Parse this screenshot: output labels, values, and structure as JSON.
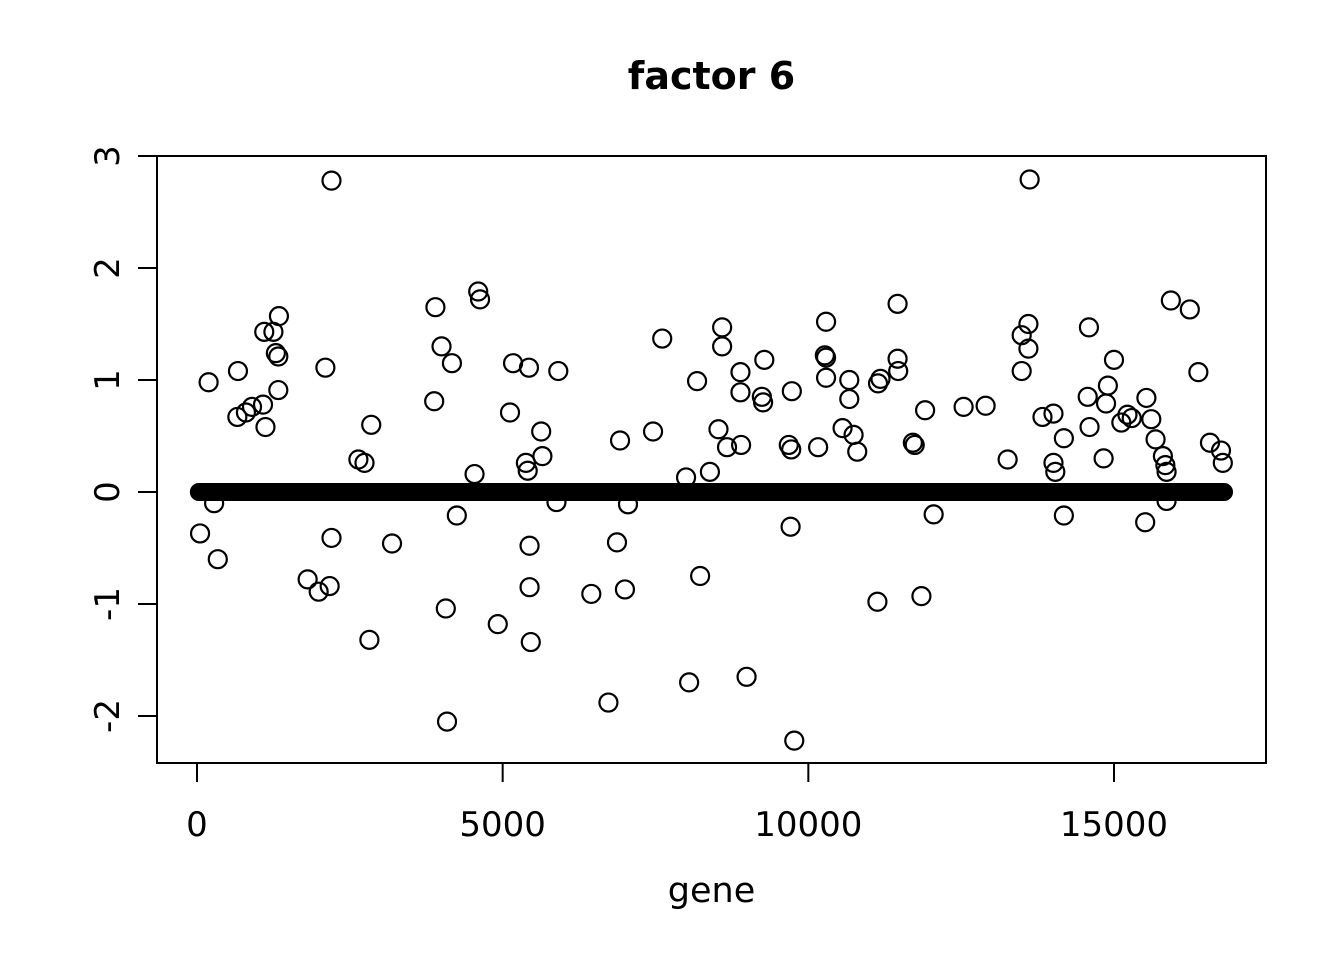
{
  "figure": {
    "background": "#ffffff",
    "foreground": "#000000"
  },
  "chart_data": {
    "type": "scatter",
    "title": "factor 6",
    "xlabel": "gene",
    "ylabel": "",
    "x_ticks": [
      0,
      5000,
      10000,
      15000
    ],
    "y_ticks": [
      3,
      2,
      1,
      0,
      -1,
      -2
    ],
    "xlim": [
      -650,
      17490
    ],
    "ylim": [
      -2.42,
      3.0
    ],
    "grid": false,
    "legend": "none",
    "marker": "open-circle",
    "marker_color": "#000000",
    "zero_band": {
      "value": 0,
      "gene_start": 30,
      "gene_end": 16800,
      "note": "dense band of heavily overplotted points with loading ~0 spanning nearly all genes"
    },
    "points": [
      [
        190,
        0.98
      ],
      [
        50,
        -0.37
      ],
      [
        280,
        -0.1
      ],
      [
        340,
        -0.6
      ],
      [
        660,
        0.67
      ],
      [
        670,
        1.08
      ],
      [
        800,
        0.71
      ],
      [
        900,
        0.76
      ],
      [
        1080,
        0.78
      ],
      [
        1120,
        0.58
      ],
      [
        1100,
        1.43
      ],
      [
        1250,
        1.43
      ],
      [
        1290,
        1.24
      ],
      [
        1330,
        1.21
      ],
      [
        1340,
        1.57
      ],
      [
        1330,
        0.91
      ],
      [
        2100,
        1.11
      ],
      [
        2200,
        2.78
      ],
      [
        1810,
        -0.78
      ],
      [
        1990,
        -0.89
      ],
      [
        2170,
        -0.84
      ],
      [
        2200,
        -0.41
      ],
      [
        2640,
        0.29
      ],
      [
        2740,
        0.26
      ],
      [
        2850,
        0.6
      ],
      [
        2820,
        -1.32
      ],
      [
        3190,
        -0.46
      ],
      [
        3880,
        0.81
      ],
      [
        3900,
        1.65
      ],
      [
        4000,
        1.3
      ],
      [
        4170,
        1.15
      ],
      [
        4070,
        -1.04
      ],
      [
        4090,
        -2.05
      ],
      [
        4250,
        -0.21
      ],
      [
        4540,
        0.16
      ],
      [
        4600,
        1.79
      ],
      [
        4630,
        1.72
      ],
      [
        4920,
        -1.18
      ],
      [
        5120,
        0.71
      ],
      [
        5170,
        1.15
      ],
      [
        5430,
        1.11
      ],
      [
        5380,
        0.26
      ],
      [
        5410,
        0.19
      ],
      [
        5440,
        -0.48
      ],
      [
        5440,
        -0.85
      ],
      [
        5460,
        -1.34
      ],
      [
        5630,
        0.54
      ],
      [
        5650,
        0.32
      ],
      [
        5880,
        -0.09
      ],
      [
        5910,
        1.08
      ],
      [
        6450,
        -0.91
      ],
      [
        6730,
        -1.88
      ],
      [
        6870,
        -0.45
      ],
      [
        6920,
        0.46
      ],
      [
        7000,
        -0.87
      ],
      [
        7050,
        -0.11
      ],
      [
        7460,
        0.54
      ],
      [
        7610,
        1.37
      ],
      [
        8000,
        0.13
      ],
      [
        8050,
        -1.7
      ],
      [
        8180,
        0.99
      ],
      [
        8230,
        -0.75
      ],
      [
        8390,
        0.18
      ],
      [
        8530,
        0.56
      ],
      [
        8590,
        1.47
      ],
      [
        8590,
        1.3
      ],
      [
        8670,
        0.4
      ],
      [
        8900,
        0.42
      ],
      [
        8890,
        1.07
      ],
      [
        8890,
        0.89
      ],
      [
        8990,
        -1.65
      ],
      [
        9240,
        0.85
      ],
      [
        9260,
        0.8
      ],
      [
        9280,
        1.18
      ],
      [
        9680,
        0.42
      ],
      [
        9720,
        0.38
      ],
      [
        9710,
        -0.31
      ],
      [
        9730,
        0.9
      ],
      [
        9770,
        -2.22
      ],
      [
        10160,
        0.4
      ],
      [
        10270,
        1.22
      ],
      [
        10290,
        1.2
      ],
      [
        10290,
        1.52
      ],
      [
        10290,
        1.02
      ],
      [
        10560,
        0.57
      ],
      [
        10670,
        1.0
      ],
      [
        10670,
        0.83
      ],
      [
        10740,
        0.51
      ],
      [
        10800,
        0.36
      ],
      [
        11140,
        0.97
      ],
      [
        11130,
        -0.98
      ],
      [
        11180,
        1.01
      ],
      [
        11460,
        1.68
      ],
      [
        11460,
        1.19
      ],
      [
        11470,
        1.08
      ],
      [
        11710,
        0.44
      ],
      [
        11740,
        0.42
      ],
      [
        11850,
        -0.93
      ],
      [
        11910,
        0.73
      ],
      [
        12050,
        -0.2
      ],
      [
        12540,
        0.76
      ],
      [
        12900,
        0.77
      ],
      [
        13260,
        0.29
      ],
      [
        13490,
        1.4
      ],
      [
        13490,
        1.08
      ],
      [
        13600,
        1.5
      ],
      [
        13600,
        1.28
      ],
      [
        13620,
        2.79
      ],
      [
        13830,
        0.67
      ],
      [
        14010,
        0.7
      ],
      [
        14010,
        0.26
      ],
      [
        14040,
        0.18
      ],
      [
        14180,
        0.48
      ],
      [
        14180,
        -0.21
      ],
      [
        14570,
        0.85
      ],
      [
        14590,
        1.47
      ],
      [
        14600,
        0.58
      ],
      [
        14830,
        0.3
      ],
      [
        14870,
        0.79
      ],
      [
        14900,
        0.95
      ],
      [
        15000,
        1.18
      ],
      [
        15120,
        0.62
      ],
      [
        15220,
        0.69
      ],
      [
        15290,
        0.66
      ],
      [
        15510,
        -0.27
      ],
      [
        15530,
        0.84
      ],
      [
        15610,
        0.65
      ],
      [
        15680,
        0.47
      ],
      [
        15800,
        0.32
      ],
      [
        15840,
        0.24
      ],
      [
        15860,
        0.18
      ],
      [
        15860,
        -0.08
      ],
      [
        15930,
        1.71
      ],
      [
        16240,
        1.63
      ],
      [
        16380,
        1.07
      ],
      [
        16570,
        0.44
      ],
      [
        16750,
        0.37
      ],
      [
        16780,
        0.26
      ]
    ]
  }
}
